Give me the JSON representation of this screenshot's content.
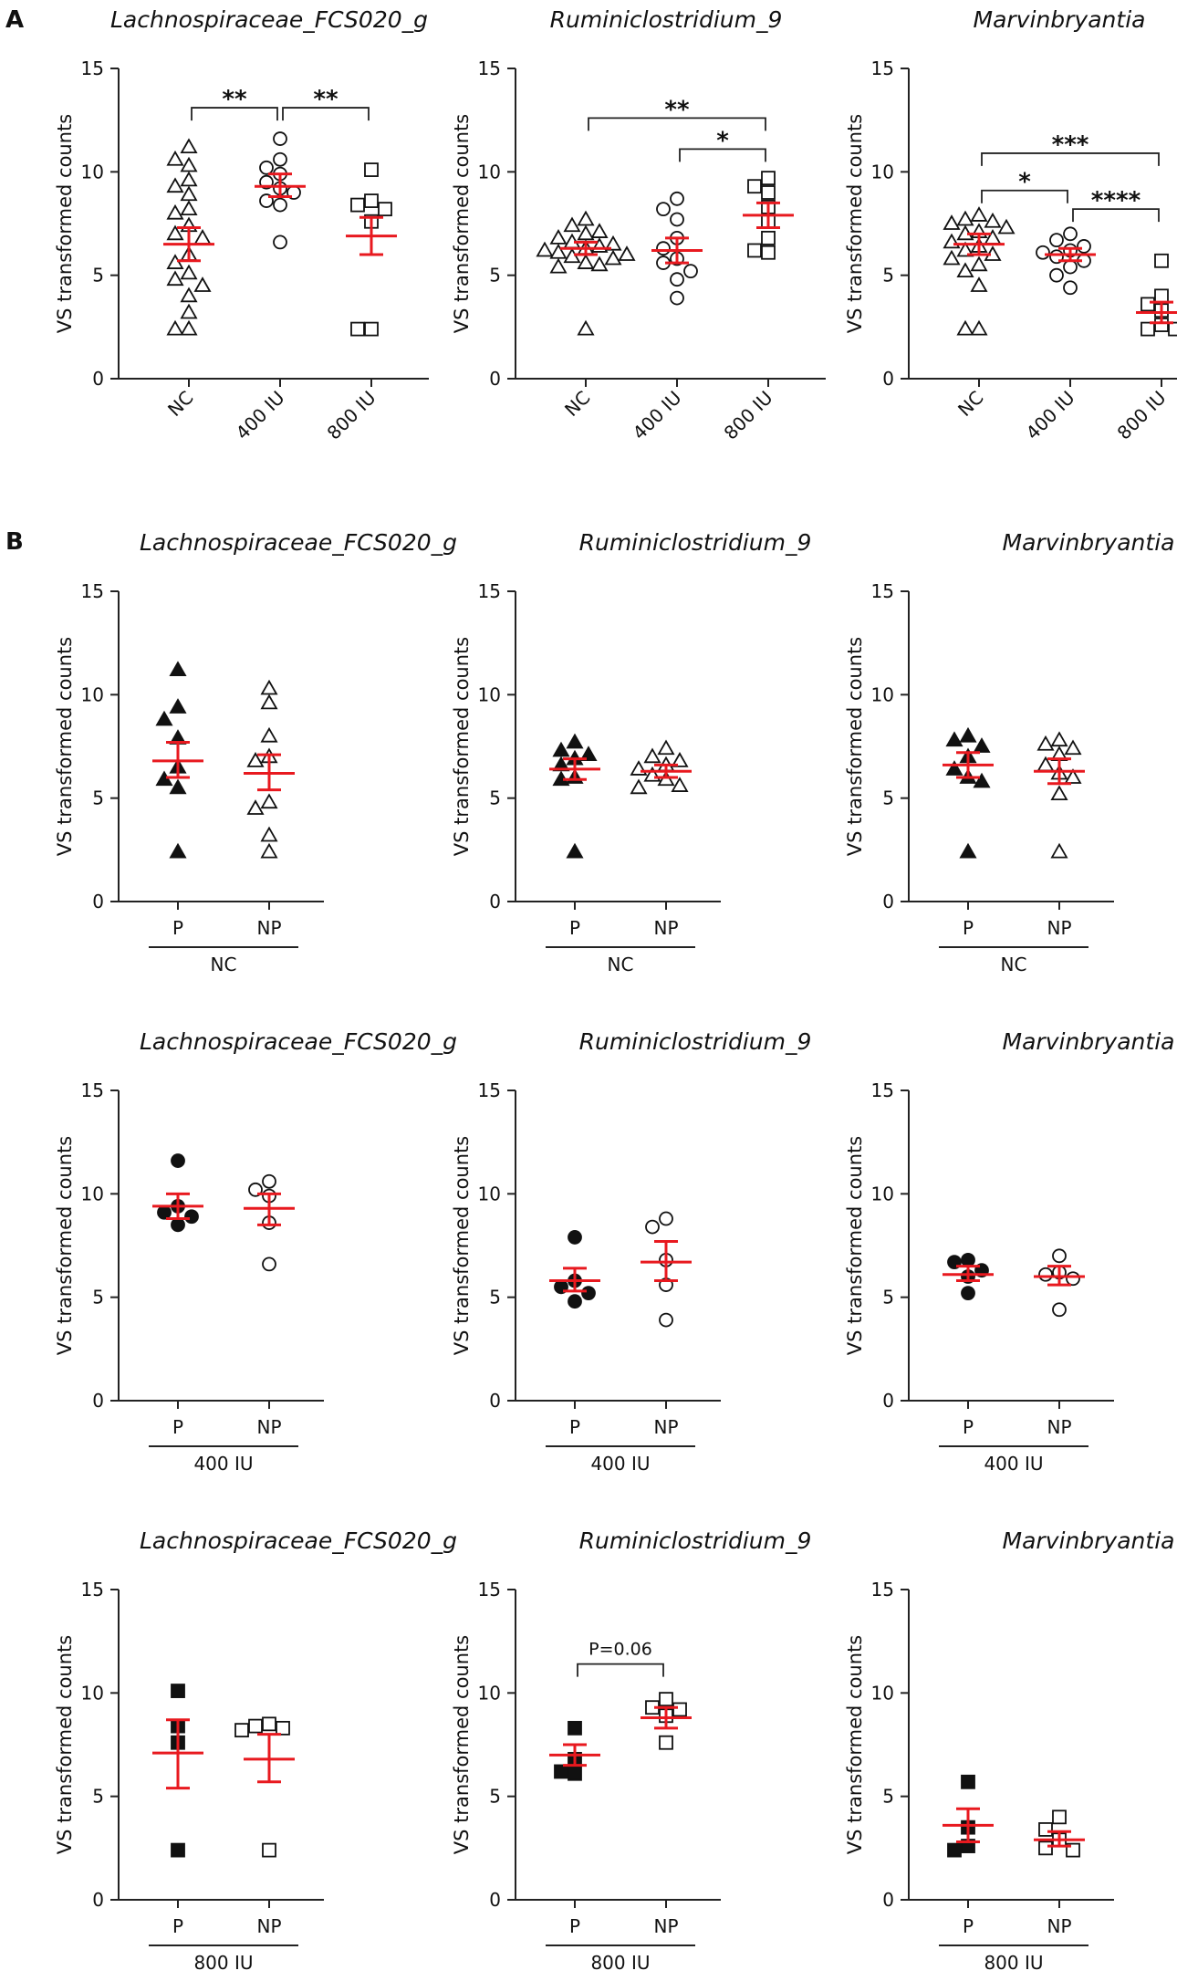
{
  "panel_labels": [
    "A",
    "B"
  ],
  "colors": {
    "mean_bar": "#e8191f",
    "marker": "#111111",
    "axis": "#222222"
  },
  "chart_data": [
    {
      "id": "a-lachno",
      "panel": "A",
      "type": "scatter",
      "title": "Lachnospiraceae_FCS020_g",
      "ylabel": "VS transformed counts",
      "ylim": [
        0,
        15
      ],
      "yticks": [
        0,
        5,
        10,
        15
      ],
      "categories": [
        "NC",
        "400 IU",
        "800 IU"
      ],
      "category_labels_rotated": true,
      "group_label": "",
      "series": [
        {
          "name": "NC",
          "marker": "triangle",
          "filled": false,
          "mean": 6.5,
          "sem_low": 5.7,
          "sem_high": 7.3,
          "values": [
            11.2,
            10.6,
            10.3,
            9.6,
            9.3,
            8.9,
            8.2,
            8.0,
            7.4,
            7.0,
            6.8,
            6.0,
            5.6,
            5.1,
            4.8,
            4.5,
            4.0,
            3.2,
            2.4,
            2.4
          ]
        },
        {
          "name": "400 IU",
          "marker": "circle",
          "filled": false,
          "mean": 9.3,
          "sem_low": 8.8,
          "sem_high": 9.9,
          "values": [
            11.6,
            10.6,
            10.2,
            9.9,
            9.5,
            9.2,
            9.0,
            8.6,
            8.4,
            6.6
          ]
        },
        {
          "name": "800 IU",
          "marker": "square",
          "filled": false,
          "mean": 6.9,
          "sem_low": 6.0,
          "sem_high": 7.8,
          "values": [
            10.1,
            8.6,
            8.4,
            8.2,
            7.6,
            2.4,
            2.4
          ]
        }
      ],
      "brackets": [
        {
          "from": 0,
          "to": 1,
          "label": "**",
          "y": 13.1
        },
        {
          "from": 1,
          "to": 2,
          "label": "**",
          "y": 13.1
        }
      ]
    },
    {
      "id": "a-rumino",
      "panel": "A",
      "type": "scatter",
      "title": "Ruminiclostridium_9",
      "ylabel": "VS transformed counts",
      "ylim": [
        0,
        15
      ],
      "yticks": [
        0,
        5,
        10,
        15
      ],
      "categories": [
        "NC",
        "400 IU",
        "800 IU"
      ],
      "category_labels_rotated": true,
      "group_label": "",
      "series": [
        {
          "name": "NC",
          "marker": "triangle",
          "filled": false,
          "mean": 6.3,
          "sem_low": 6.0,
          "sem_high": 6.6,
          "values": [
            7.7,
            7.4,
            7.1,
            7.0,
            6.8,
            6.6,
            6.5,
            6.4,
            6.3,
            6.2,
            6.1,
            6.0,
            5.9,
            5.8,
            5.6,
            5.5,
            5.4,
            2.4
          ]
        },
        {
          "name": "400 IU",
          "marker": "circle",
          "filled": false,
          "mean": 6.2,
          "sem_low": 5.6,
          "sem_high": 6.8,
          "values": [
            8.7,
            8.2,
            7.7,
            6.8,
            6.3,
            5.8,
            5.6,
            5.2,
            4.8,
            3.9
          ]
        },
        {
          "name": "800 IU",
          "marker": "square",
          "filled": false,
          "mean": 7.9,
          "sem_low": 7.3,
          "sem_high": 8.5,
          "values": [
            9.7,
            9.3,
            9.0,
            8.3,
            7.6,
            6.8,
            6.2,
            6.1
          ]
        }
      ],
      "brackets": [
        {
          "from": 0,
          "to": 2,
          "label": "**",
          "y": 12.6
        },
        {
          "from": 1,
          "to": 2,
          "label": "*",
          "y": 11.1
        }
      ]
    },
    {
      "id": "a-marvin",
      "panel": "A",
      "type": "scatter",
      "title": "Marvinbryantia",
      "ylabel": "VS transformed counts",
      "ylim": [
        0,
        15
      ],
      "yticks": [
        0,
        5,
        10,
        15
      ],
      "categories": [
        "NC",
        "400 IU",
        "800 IU"
      ],
      "category_labels_rotated": true,
      "group_label": "",
      "series": [
        {
          "name": "NC",
          "marker": "triangle",
          "filled": false,
          "mean": 6.5,
          "sem_low": 6.0,
          "sem_high": 7.0,
          "values": [
            7.9,
            7.7,
            7.6,
            7.5,
            7.3,
            7.1,
            7.0,
            6.8,
            6.6,
            6.4,
            6.2,
            6.0,
            5.8,
            5.5,
            5.2,
            4.5,
            2.4,
            2.4
          ]
        },
        {
          "name": "400 IU",
          "marker": "circle",
          "filled": false,
          "mean": 6.0,
          "sem_low": 5.7,
          "sem_high": 6.3,
          "values": [
            7.0,
            6.7,
            6.4,
            6.2,
            6.1,
            5.9,
            5.7,
            5.4,
            5.0,
            4.4
          ]
        },
        {
          "name": "800 IU",
          "marker": "square",
          "filled": false,
          "mean": 3.2,
          "sem_low": 2.7,
          "sem_high": 3.7,
          "values": [
            5.7,
            4.0,
            3.6,
            3.3,
            2.6,
            2.4,
            2.4
          ]
        }
      ],
      "brackets": [
        {
          "from": 0,
          "to": 2,
          "label": "***",
          "y": 10.9
        },
        {
          "from": 0,
          "to": 1,
          "label": "*",
          "y": 9.1
        },
        {
          "from": 1,
          "to": 2,
          "label": "****",
          "y": 8.2
        }
      ]
    },
    {
      "id": "b-nc-lachno",
      "panel": "B",
      "type": "scatter",
      "title": "Lachnospiraceae_FCS020_g",
      "ylabel": "VS transformed counts",
      "ylim": [
        0,
        15
      ],
      "yticks": [
        0,
        5,
        10,
        15
      ],
      "categories": [
        "P",
        "NP"
      ],
      "category_labels_rotated": false,
      "group_label": "NC",
      "series": [
        {
          "name": "P",
          "marker": "triangle",
          "filled": true,
          "mean": 6.8,
          "sem_low": 6.0,
          "sem_high": 7.7,
          "values": [
            11.2,
            9.4,
            8.8,
            7.9,
            6.5,
            5.9,
            5.5,
            2.4
          ]
        },
        {
          "name": "NP",
          "marker": "triangle",
          "filled": false,
          "mean": 6.2,
          "sem_low": 5.4,
          "sem_high": 7.1,
          "values": [
            10.3,
            9.6,
            8.0,
            7.0,
            6.8,
            4.8,
            4.5,
            3.2,
            2.4
          ]
        }
      ],
      "brackets": []
    },
    {
      "id": "b-nc-rumino",
      "panel": "B",
      "type": "scatter",
      "title": "Ruminiclostridium_9",
      "ylabel": "VS transformed counts",
      "ylim": [
        0,
        15
      ],
      "yticks": [
        0,
        5,
        10,
        15
      ],
      "categories": [
        "P",
        "NP"
      ],
      "category_labels_rotated": false,
      "group_label": "NC",
      "series": [
        {
          "name": "P",
          "marker": "triangle",
          "filled": true,
          "mean": 6.4,
          "sem_low": 5.9,
          "sem_high": 6.9,
          "values": [
            7.7,
            7.3,
            7.1,
            6.9,
            6.6,
            6.0,
            5.9,
            2.4
          ]
        },
        {
          "name": "NP",
          "marker": "triangle",
          "filled": false,
          "mean": 6.3,
          "sem_low": 6.0,
          "sem_high": 6.6,
          "values": [
            7.4,
            7.0,
            6.8,
            6.6,
            6.4,
            6.1,
            5.9,
            5.6,
            5.5
          ]
        }
      ],
      "brackets": []
    },
    {
      "id": "b-nc-marvin",
      "panel": "B",
      "type": "scatter",
      "title": "Marvinbryantia",
      "ylabel": "VS transformed counts",
      "ylim": [
        0,
        15
      ],
      "yticks": [
        0,
        5,
        10,
        15
      ],
      "categories": [
        "P",
        "NP"
      ],
      "category_labels_rotated": false,
      "group_label": "NC",
      "series": [
        {
          "name": "P",
          "marker": "triangle",
          "filled": true,
          "mean": 6.6,
          "sem_low": 6.0,
          "sem_high": 7.2,
          "values": [
            8.0,
            7.8,
            7.5,
            7.0,
            6.4,
            6.0,
            5.8,
            2.4
          ]
        },
        {
          "name": "NP",
          "marker": "triangle",
          "filled": false,
          "mean": 6.3,
          "sem_low": 5.7,
          "sem_high": 6.9,
          "values": [
            7.8,
            7.6,
            7.4,
            7.1,
            6.6,
            6.2,
            6.0,
            5.2,
            2.4
          ]
        }
      ],
      "brackets": []
    },
    {
      "id": "b-400-lachno",
      "panel": "B",
      "type": "scatter",
      "title": "Lachnospiraceae_FCS020_g",
      "ylabel": "VS transformed counts",
      "ylim": [
        0,
        15
      ],
      "yticks": [
        0,
        5,
        10,
        15
      ],
      "categories": [
        "P",
        "NP"
      ],
      "category_labels_rotated": false,
      "group_label": "400 IU",
      "series": [
        {
          "name": "P",
          "marker": "circle",
          "filled": true,
          "mean": 9.4,
          "sem_low": 8.8,
          "sem_high": 10.0,
          "values": [
            11.6,
            9.4,
            9.1,
            8.9,
            8.5
          ]
        },
        {
          "name": "NP",
          "marker": "circle",
          "filled": false,
          "mean": 9.3,
          "sem_low": 8.5,
          "sem_high": 10.0,
          "values": [
            10.6,
            10.2,
            9.9,
            8.6,
            6.6
          ]
        }
      ],
      "brackets": []
    },
    {
      "id": "b-400-rumino",
      "panel": "B",
      "type": "scatter",
      "title": "Ruminiclostridium_9",
      "ylabel": "VS transformed counts",
      "ylim": [
        0,
        15
      ],
      "yticks": [
        0,
        5,
        10,
        15
      ],
      "categories": [
        "P",
        "NP"
      ],
      "category_labels_rotated": false,
      "group_label": "400 IU",
      "series": [
        {
          "name": "P",
          "marker": "circle",
          "filled": true,
          "mean": 5.8,
          "sem_low": 5.3,
          "sem_high": 6.4,
          "values": [
            7.9,
            5.8,
            5.5,
            5.2,
            4.8
          ]
        },
        {
          "name": "NP",
          "marker": "circle",
          "filled": false,
          "mean": 6.7,
          "sem_low": 5.8,
          "sem_high": 7.7,
          "values": [
            8.8,
            8.4,
            6.8,
            5.6,
            3.9
          ]
        }
      ],
      "brackets": []
    },
    {
      "id": "b-400-marvin",
      "panel": "B",
      "type": "scatter",
      "title": "Marvinbryantia",
      "ylabel": "VS transformed counts",
      "ylim": [
        0,
        15
      ],
      "yticks": [
        0,
        5,
        10,
        15
      ],
      "categories": [
        "P",
        "NP"
      ],
      "category_labels_rotated": false,
      "group_label": "400 IU",
      "series": [
        {
          "name": "P",
          "marker": "circle",
          "filled": true,
          "mean": 6.1,
          "sem_low": 5.8,
          "sem_high": 6.5,
          "values": [
            6.8,
            6.7,
            6.3,
            6.0,
            5.2
          ]
        },
        {
          "name": "NP",
          "marker": "circle",
          "filled": false,
          "mean": 6.0,
          "sem_low": 5.6,
          "sem_high": 6.5,
          "values": [
            7.0,
            6.2,
            6.1,
            5.9,
            4.4
          ]
        }
      ],
      "brackets": []
    },
    {
      "id": "b-800-lachno",
      "panel": "B",
      "type": "scatter",
      "title": "Lachnospiraceae_FCS020_g",
      "ylabel": "VS transformed counts",
      "ylim": [
        0,
        15
      ],
      "yticks": [
        0,
        5,
        10,
        15
      ],
      "categories": [
        "P",
        "NP"
      ],
      "category_labels_rotated": false,
      "group_label": "800 IU",
      "series": [
        {
          "name": "P",
          "marker": "square",
          "filled": true,
          "mean": 7.1,
          "sem_low": 5.4,
          "sem_high": 8.7,
          "values": [
            10.1,
            8.4,
            7.6,
            2.4
          ]
        },
        {
          "name": "NP",
          "marker": "square",
          "filled": false,
          "mean": 6.8,
          "sem_low": 5.7,
          "sem_high": 8.0,
          "values": [
            8.5,
            8.4,
            8.3,
            8.2,
            2.4
          ]
        }
      ],
      "brackets": []
    },
    {
      "id": "b-800-rumino",
      "panel": "B",
      "type": "scatter",
      "title": "Ruminiclostridium_9",
      "ylabel": "VS transformed counts",
      "ylim": [
        0,
        15
      ],
      "yticks": [
        0,
        5,
        10,
        15
      ],
      "categories": [
        "P",
        "NP"
      ],
      "category_labels_rotated": false,
      "group_label": "800 IU",
      "series": [
        {
          "name": "P",
          "marker": "square",
          "filled": true,
          "mean": 7.0,
          "sem_low": 6.5,
          "sem_high": 7.5,
          "values": [
            8.3,
            6.8,
            6.2,
            6.1
          ]
        },
        {
          "name": "NP",
          "marker": "square",
          "filled": false,
          "mean": 8.8,
          "sem_low": 8.3,
          "sem_high": 9.3,
          "values": [
            9.7,
            9.3,
            9.2,
            8.9,
            7.6
          ]
        }
      ],
      "brackets": [
        {
          "from": 0,
          "to": 1,
          "label": "P=0.06",
          "y": 11.4
        }
      ]
    },
    {
      "id": "b-800-marvin",
      "panel": "B",
      "type": "scatter",
      "title": "Marvinbryantia",
      "ylabel": "VS transformed counts",
      "ylim": [
        0,
        15
      ],
      "yticks": [
        0,
        5,
        10,
        15
      ],
      "categories": [
        "P",
        "NP"
      ],
      "category_labels_rotated": false,
      "group_label": "800 IU",
      "series": [
        {
          "name": "P",
          "marker": "square",
          "filled": true,
          "mean": 3.6,
          "sem_low": 2.8,
          "sem_high": 4.4,
          "values": [
            5.7,
            3.5,
            2.6,
            2.4
          ]
        },
        {
          "name": "NP",
          "marker": "square",
          "filled": false,
          "mean": 2.9,
          "sem_low": 2.6,
          "sem_high": 3.3,
          "values": [
            4.0,
            3.4,
            2.9,
            2.5,
            2.4
          ]
        }
      ],
      "brackets": []
    }
  ]
}
